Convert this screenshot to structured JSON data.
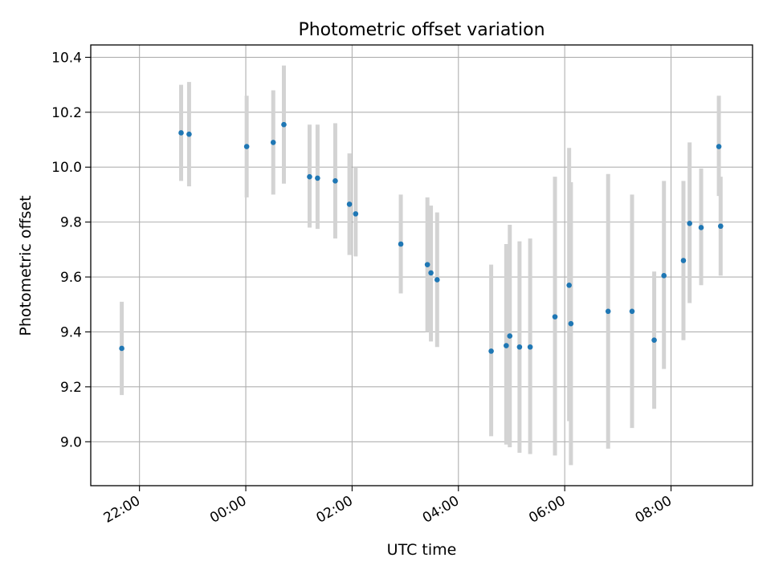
{
  "chart_data": {
    "type": "scatter",
    "title": "Photometric offset variation",
    "xlabel": "UTC time",
    "ylabel": "Photometric offset",
    "grid": true,
    "x_axis_type": "time",
    "xlim": [
      "21:05",
      "09:32"
    ],
    "ylim": [
      8.84,
      10.445
    ],
    "x_ticks": [
      "22:00",
      "00:00",
      "02:00",
      "04:00",
      "06:00",
      "08:00"
    ],
    "y_ticks": [
      "9.0",
      "9.2",
      "9.4",
      "9.6",
      "9.8",
      "10.0",
      "10.2",
      "10.4"
    ],
    "point_color": "#1f77b4",
    "errorbar_color": "#d3d3d3",
    "series": [
      {
        "points": [
          {
            "x": "21:40",
            "y": 9.34,
            "ylow": 9.17,
            "yhigh": 9.51
          },
          {
            "x": "22:47",
            "y": 10.125,
            "ylow": 9.95,
            "yhigh": 10.3
          },
          {
            "x": "22:56",
            "y": 10.12,
            "ylow": 9.93,
            "yhigh": 10.31
          },
          {
            "x": "00:01",
            "y": 10.075,
            "ylow": 9.89,
            "yhigh": 10.26
          },
          {
            "x": "00:31",
            "y": 10.09,
            "ylow": 9.9,
            "yhigh": 10.28
          },
          {
            "x": "00:43",
            "y": 10.155,
            "ylow": 9.94,
            "yhigh": 10.37
          },
          {
            "x": "01:12",
            "y": 9.965,
            "ylow": 9.78,
            "yhigh": 10.155
          },
          {
            "x": "01:21",
            "y": 9.96,
            "ylow": 9.775,
            "yhigh": 10.155
          },
          {
            "x": "01:41",
            "y": 9.95,
            "ylow": 9.74,
            "yhigh": 10.16
          },
          {
            "x": "01:57",
            "y": 9.865,
            "ylow": 9.68,
            "yhigh": 10.05
          },
          {
            "x": "02:04",
            "y": 9.83,
            "ylow": 9.675,
            "yhigh": 10.0
          },
          {
            "x": "02:55",
            "y": 9.72,
            "ylow": 9.54,
            "yhigh": 9.9
          },
          {
            "x": "03:25",
            "y": 9.645,
            "ylow": 9.4,
            "yhigh": 9.89
          },
          {
            "x": "03:29",
            "y": 9.615,
            "ylow": 9.365,
            "yhigh": 9.86
          },
          {
            "x": "03:36",
            "y": 9.59,
            "ylow": 9.345,
            "yhigh": 9.835
          },
          {
            "x": "04:37",
            "y": 9.33,
            "ylow": 9.02,
            "yhigh": 9.645
          },
          {
            "x": "04:54",
            "y": 9.35,
            "ylow": 8.99,
            "yhigh": 9.72
          },
          {
            "x": "04:58",
            "y": 9.385,
            "ylow": 8.98,
            "yhigh": 9.79
          },
          {
            "x": "05:09",
            "y": 9.345,
            "ylow": 8.96,
            "yhigh": 9.73
          },
          {
            "x": "05:21",
            "y": 9.345,
            "ylow": 8.955,
            "yhigh": 9.74
          },
          {
            "x": "05:49",
            "y": 9.455,
            "ylow": 8.95,
            "yhigh": 9.965
          },
          {
            "x": "06:05",
            "y": 9.57,
            "ylow": 9.075,
            "yhigh": 10.07
          },
          {
            "x": "06:07",
            "y": 9.43,
            "ylow": 8.915,
            "yhigh": 9.945
          },
          {
            "x": "06:49",
            "y": 9.475,
            "ylow": 8.975,
            "yhigh": 9.975
          },
          {
            "x": "07:16",
            "y": 9.475,
            "ylow": 9.05,
            "yhigh": 9.9
          },
          {
            "x": "07:41",
            "y": 9.37,
            "ylow": 9.12,
            "yhigh": 9.62
          },
          {
            "x": "07:52",
            "y": 9.605,
            "ylow": 9.265,
            "yhigh": 9.95
          },
          {
            "x": "08:14",
            "y": 9.66,
            "ylow": 9.37,
            "yhigh": 9.95
          },
          {
            "x": "08:21",
            "y": 9.795,
            "ylow": 9.505,
            "yhigh": 10.09
          },
          {
            "x": "08:34",
            "y": 9.78,
            "ylow": 9.57,
            "yhigh": 9.995
          },
          {
            "x": "08:54",
            "y": 10.075,
            "ylow": 9.895,
            "yhigh": 10.26
          },
          {
            "x": "08:56",
            "y": 9.785,
            "ylow": 9.605,
            "yhigh": 9.965
          }
        ]
      }
    ]
  }
}
